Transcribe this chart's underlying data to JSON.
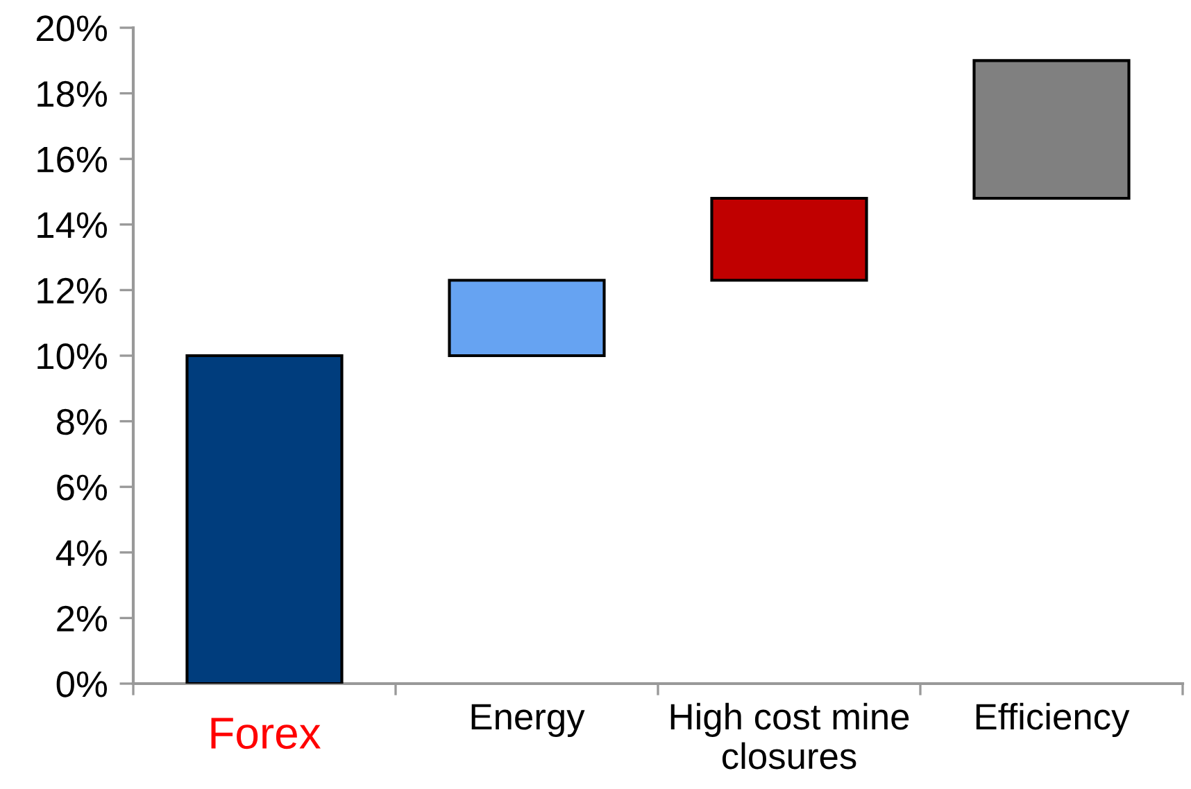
{
  "chart_data": {
    "type": "bar",
    "categories": [
      "Forex",
      "Energy",
      "High cost mine\nclosures",
      "Efficiency"
    ],
    "values": [
      10,
      2.3,
      2.5,
      4.2
    ],
    "base": [
      0,
      10,
      12.3,
      14.8
    ],
    "colors": [
      "#003d7d",
      "#66a3f2",
      "#c00000",
      "#808080"
    ],
    "ylim": [
      0,
      20
    ],
    "yticks": [
      {
        "value": 0,
        "label": "0%"
      },
      {
        "value": 2,
        "label": "2%"
      },
      {
        "value": 4,
        "label": "4%"
      },
      {
        "value": 6,
        "label": "6%"
      },
      {
        "value": 8,
        "label": "8%"
      },
      {
        "value": 10,
        "label": "10%"
      },
      {
        "value": 12,
        "label": "12%"
      },
      {
        "value": 14,
        "label": "14%"
      },
      {
        "value": 16,
        "label": "16%"
      },
      {
        "value": 18,
        "label": "18%"
      },
      {
        "value": 20,
        "label": "20%"
      }
    ]
  }
}
